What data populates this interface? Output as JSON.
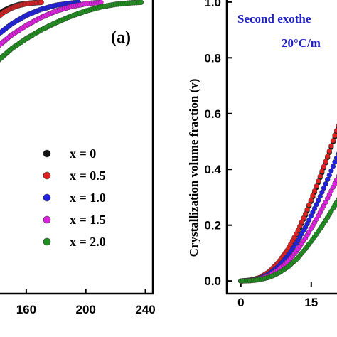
{
  "chart_data": [
    {
      "type": "scatter",
      "panel_label": "(a)",
      "xlim": [
        140,
        245
      ],
      "ylim": [
        0,
        1.02
      ],
      "x_ticks": [
        "160",
        "200",
        "240"
      ],
      "legend": {
        "placement": "center-right",
        "entries": [
          {
            "label": "x = 0",
            "color": "#111111"
          },
          {
            "label": "x = 0.5",
            "color": "#e02020"
          },
          {
            "label": "x = 1.0",
            "color": "#2020e0"
          },
          {
            "label": "x = 1.5",
            "color": "#e020e0"
          },
          {
            "label": "x = 2.0",
            "color": "#1f8f1f"
          }
        ]
      },
      "series": [
        {
          "name": "x = 0",
          "color": "#111111",
          "x": [
            140,
            145,
            150,
            155,
            160,
            165,
            170
          ],
          "y": [
            0.955,
            0.972,
            0.984,
            0.992,
            0.996,
            0.998,
            1.0
          ]
        },
        {
          "name": "x = 0.5",
          "color": "#e02020",
          "x": [
            140,
            145,
            150,
            155,
            160,
            165,
            170
          ],
          "y": [
            0.945,
            0.966,
            0.98,
            0.989,
            0.995,
            0.998,
            1.0
          ]
        },
        {
          "name": "x = 1.0",
          "color": "#2020e0",
          "x": [
            140,
            150,
            160,
            170,
            180,
            190,
            195
          ],
          "y": [
            0.885,
            0.925,
            0.955,
            0.976,
            0.99,
            0.997,
            1.0
          ]
        },
        {
          "name": "x = 1.5",
          "color": "#e020e0",
          "x": [
            140,
            150,
            160,
            170,
            180,
            190,
            200,
            210
          ],
          "y": [
            0.845,
            0.887,
            0.92,
            0.948,
            0.97,
            0.985,
            0.995,
            1.0
          ]
        },
        {
          "name": "x = 2.0",
          "color": "#1f8f1f",
          "x": [
            140,
            150,
            160,
            170,
            180,
            190,
            200,
            210,
            220,
            230,
            237
          ],
          "y": [
            0.795,
            0.84,
            0.875,
            0.905,
            0.93,
            0.952,
            0.97,
            0.984,
            0.993,
            0.998,
            1.0
          ]
        }
      ]
    },
    {
      "type": "scatter",
      "ylabel": "Crystallization volume fraction (v)",
      "annotation_line1": "Second exothe",
      "annotation_line2": "20°C/m",
      "xlim": [
        -3,
        22
      ],
      "ylim": [
        -0.02,
        1.02
      ],
      "x_ticks": [
        "0",
        "15"
      ],
      "y_ticks": [
        "0.0",
        "0.2",
        "0.4",
        "0.6",
        "0.8",
        "1.0"
      ],
      "series": [
        {
          "name": "x = 0",
          "color": "#111111",
          "x": [
            0,
            2,
            4,
            6,
            8,
            10,
            12,
            14,
            16,
            18,
            20,
            22
          ],
          "y": [
            0.0,
            0.003,
            0.012,
            0.032,
            0.065,
            0.11,
            0.17,
            0.245,
            0.33,
            0.42,
            0.515,
            0.6
          ]
        },
        {
          "name": "x = 0.5",
          "color": "#e02020",
          "x": [
            0,
            2,
            4,
            6,
            8,
            10,
            12,
            14,
            16,
            18,
            20,
            22
          ],
          "y": [
            0.0,
            0.003,
            0.012,
            0.033,
            0.067,
            0.113,
            0.175,
            0.25,
            0.335,
            0.425,
            0.52,
            0.61
          ]
        },
        {
          "name": "x = 1.0",
          "color": "#2020e0",
          "x": [
            0,
            2,
            4,
            6,
            8,
            10,
            12,
            14,
            16,
            18,
            20,
            22
          ],
          "y": [
            0.0,
            0.002,
            0.009,
            0.025,
            0.052,
            0.09,
            0.14,
            0.2,
            0.27,
            0.345,
            0.425,
            0.5
          ]
        },
        {
          "name": "x = 1.5",
          "color": "#e020e0",
          "x": [
            0,
            2,
            4,
            6,
            8,
            10,
            12,
            14,
            16,
            18,
            20,
            22
          ],
          "y": [
            0.0,
            0.002,
            0.007,
            0.019,
            0.04,
            0.07,
            0.11,
            0.16,
            0.218,
            0.28,
            0.348,
            0.415
          ]
        },
        {
          "name": "x = 2.0",
          "color": "#1f8f1f",
          "x": [
            0,
            2,
            4,
            6,
            8,
            10,
            12,
            14,
            16,
            18,
            20,
            22
          ],
          "y": [
            0.0,
            0.001,
            0.005,
            0.013,
            0.028,
            0.05,
            0.08,
            0.12,
            0.165,
            0.215,
            0.27,
            0.325
          ]
        }
      ]
    }
  ]
}
